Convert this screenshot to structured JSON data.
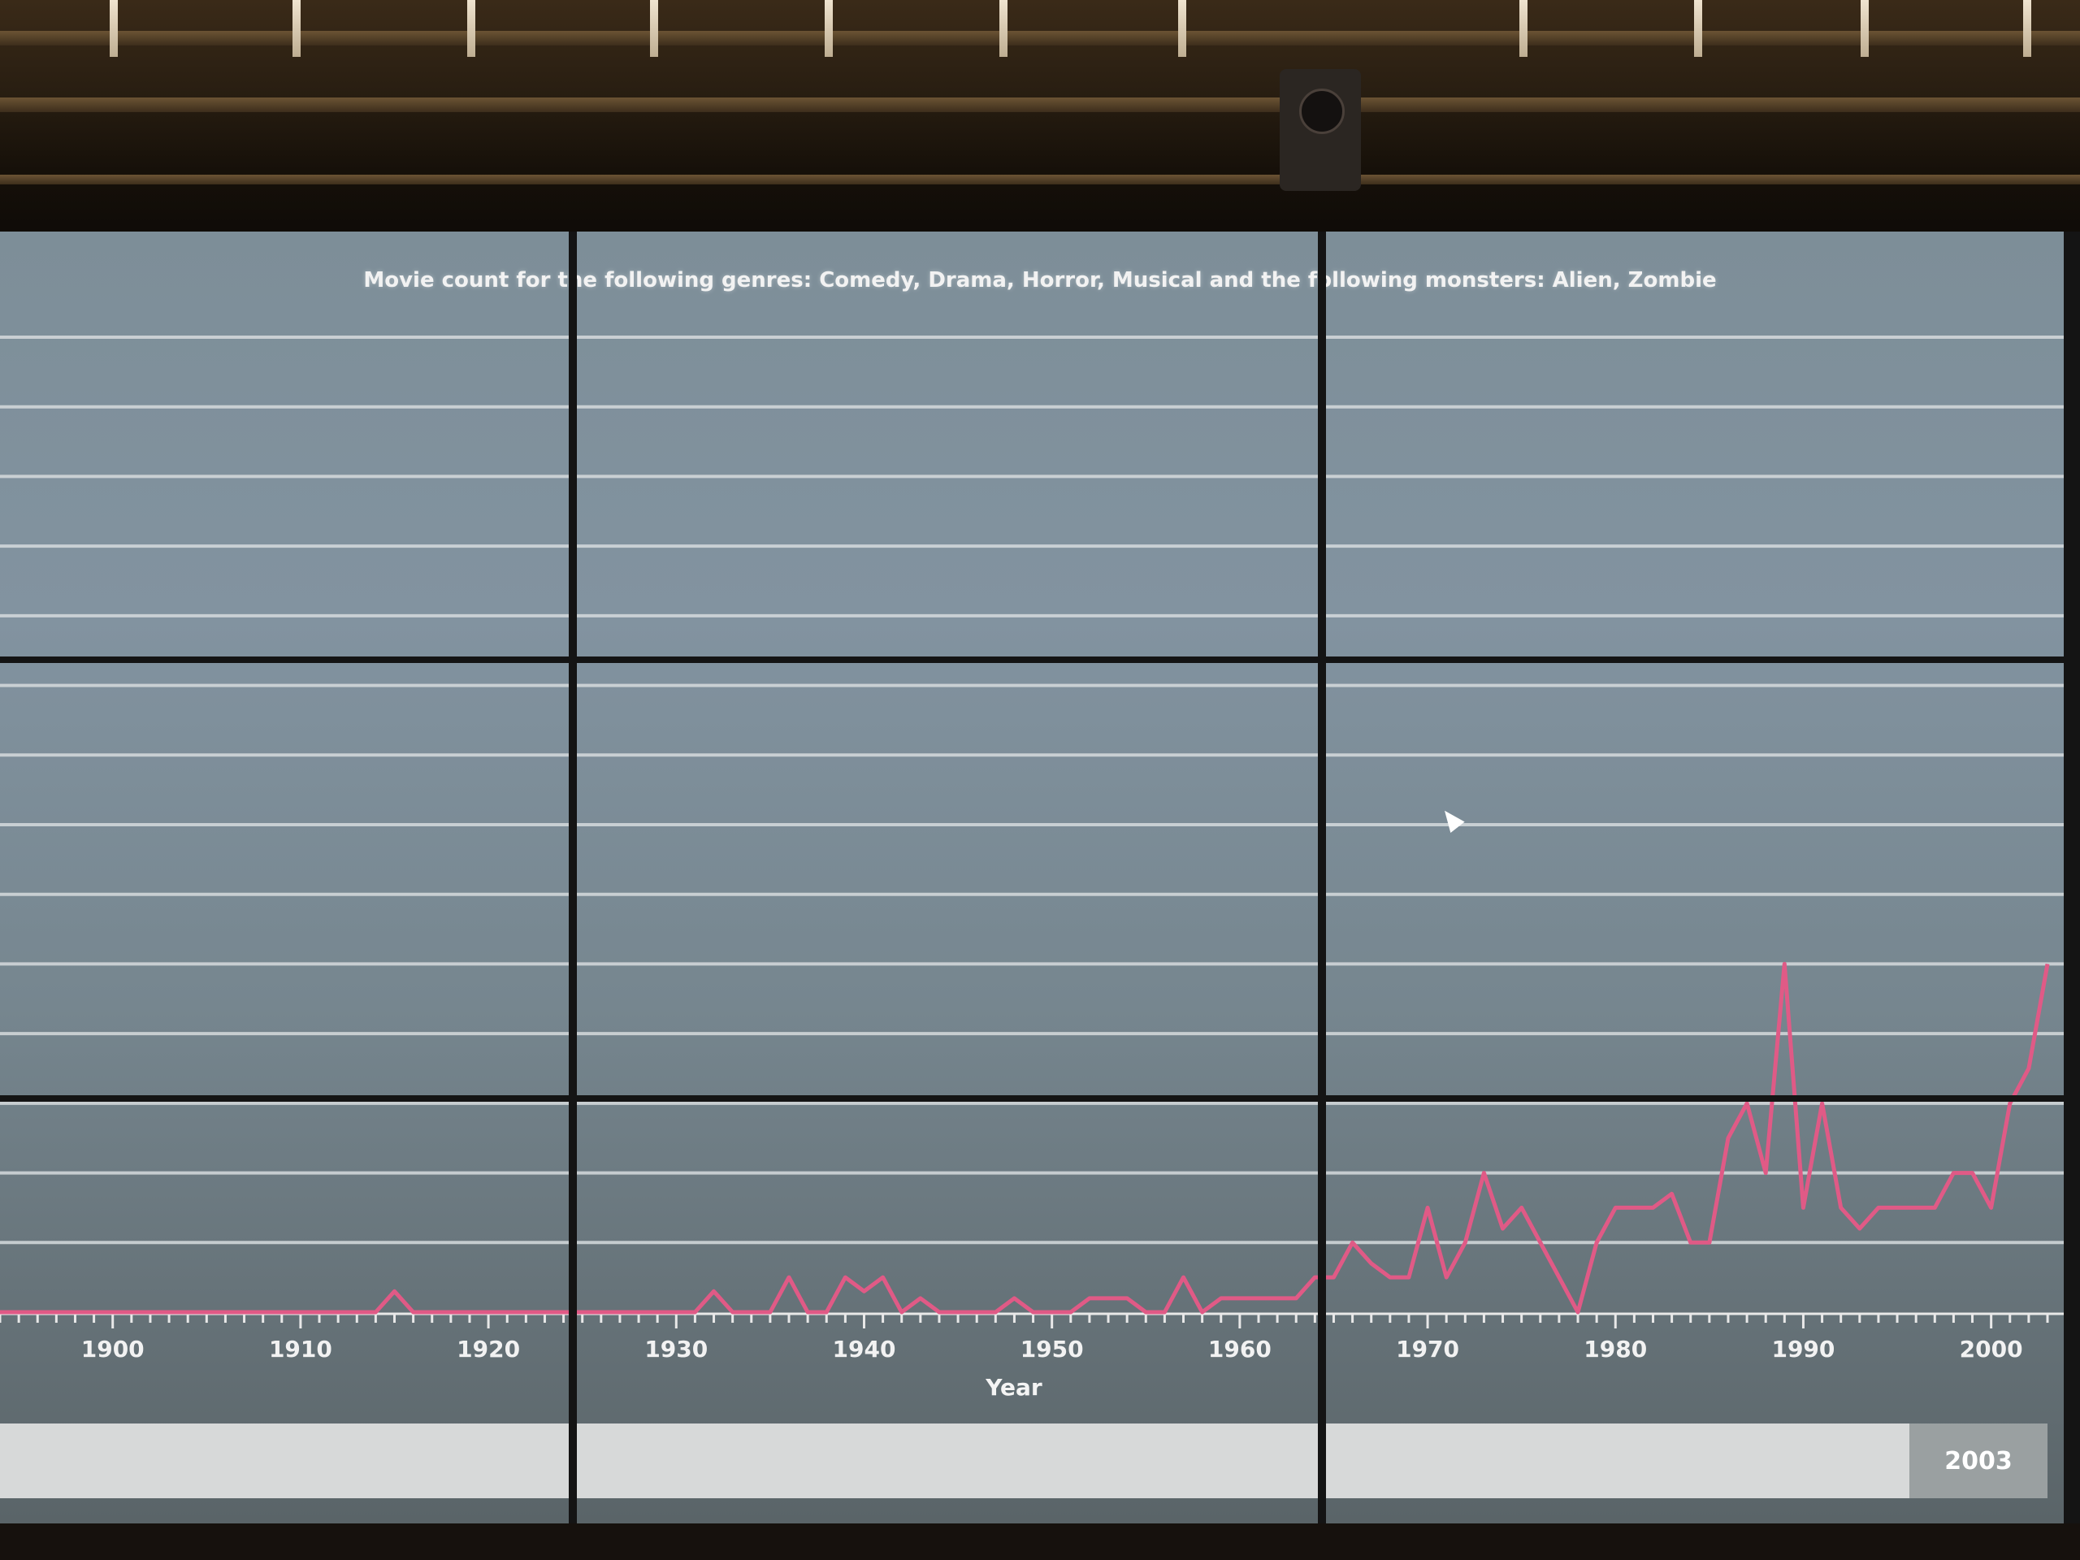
{
  "title": "Movie count for the following genres: Comedy, Drama, Horror, Musical  and the  following monsters: Alien, Zombie",
  "slider_value": "2003",
  "chart_data": {
    "type": "line",
    "title": "Movie count for the following genres: Comedy, Drama, Horror, Musical  and the  following monsters: Alien, Zombie",
    "xlabel": "Year",
    "ylabel": "",
    "xlim": [
      1894,
      2003
    ],
    "ylim": [
      0,
      14
    ],
    "grid": true,
    "xticks": [
      1900,
      1910,
      1920,
      1930,
      1940,
      1950,
      1960,
      1970,
      1980,
      1990,
      2000
    ],
    "series": [
      {
        "color": "#e05a86",
        "x": [
          1894,
          1914,
          1915,
          1916,
          1930,
          1931,
          1932,
          1933,
          1934,
          1935,
          1936,
          1937,
          1938,
          1939,
          1940,
          1941,
          1942,
          1943,
          1944,
          1945,
          1946,
          1947,
          1948,
          1949,
          1950,
          1951,
          1952,
          1953,
          1954,
          1955,
          1956,
          1957,
          1958,
          1959,
          1960,
          1961,
          1962,
          1963,
          1964,
          1965,
          1966,
          1967,
          1968,
          1969,
          1970,
          1971,
          1972,
          1973,
          1974,
          1975,
          1976,
          1977,
          1978,
          1979,
          1980,
          1981,
          1982,
          1983,
          1984,
          1985,
          1986,
          1987,
          1988,
          1989,
          1990,
          1991,
          1992,
          1993,
          1994,
          1995,
          1996,
          1997,
          1998,
          1999,
          2000,
          2001,
          2002,
          2003
        ],
        "y": [
          0,
          0,
          0.3,
          0,
          0,
          0,
          0.3,
          0,
          0,
          0,
          0.5,
          0,
          0,
          0.5,
          0.3,
          0.5,
          0,
          0.2,
          0,
          0,
          0,
          0,
          0.2,
          0,
          0,
          0,
          0.2,
          0.2,
          0.2,
          0,
          0,
          0.5,
          0,
          0.2,
          0.2,
          0.2,
          0.2,
          0.2,
          0.5,
          0.5,
          1,
          0.7,
          0.5,
          0.5,
          1.5,
          0.5,
          1,
          2,
          1.2,
          1.5,
          1,
          0.5,
          0,
          1,
          1.5,
          1.5,
          1.5,
          1.7,
          1,
          1,
          2.5,
          3,
          2,
          5,
          1.5,
          3,
          1.5,
          1.2,
          1.5,
          1.5,
          1.5,
          1.5,
          2,
          2,
          1.5,
          3,
          3.5,
          5
        ]
      }
    ]
  }
}
